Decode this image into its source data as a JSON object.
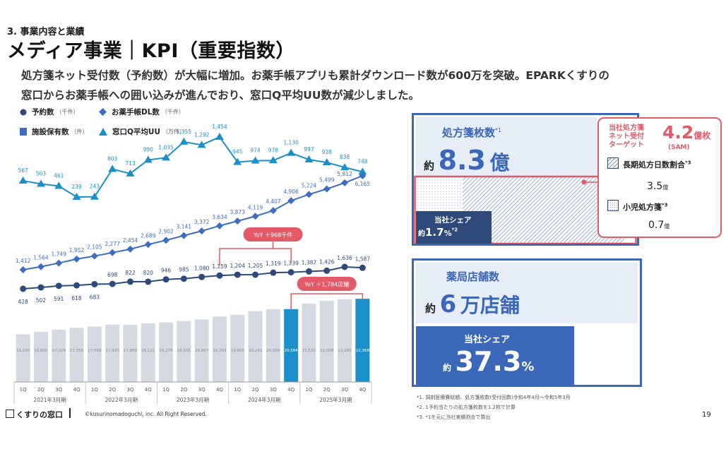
{
  "header": {
    "section": "3. 事業内容と業績",
    "title": "メディア事業｜KPI（重要指数）",
    "lead_line1": "処方箋ネット受付数（予約数）が大幅に増加。お薬手帳アプリも累計ダウンロード数が600万を突破。EPARKくすりの",
    "lead_line2": "窓口からお薬手帳への囲い込みが進んでおり、窓口Q平均UU数が減少しました。"
  },
  "legend": [
    {
      "label": "予約数",
      "unit": "（千件）",
      "marker": "circle",
      "color": "#2e4a7a"
    },
    {
      "label": "お薬手帳DL数",
      "unit": "（千件）",
      "marker": "diamond",
      "color": "#3d6cc0"
    },
    {
      "label": "施設保有数",
      "unit": "（件）",
      "marker": "square",
      "color": "#3d6cc0"
    },
    {
      "label": "窓口Q平均UU",
      "unit": "（万件）",
      "marker": "triangle",
      "color": "#1b8fc9"
    }
  ],
  "chart_data": {
    "type": "bar",
    "categories": [
      "1Q",
      "2Q",
      "3Q",
      "4Q",
      "1Q",
      "2Q",
      "3Q",
      "4Q",
      "1Q",
      "2Q",
      "3Q",
      "4Q",
      "1Q",
      "2Q",
      "3Q",
      "4Q",
      "1Q",
      "2Q",
      "3Q",
      "4Q"
    ],
    "fiscal_years": [
      "2021年3月期",
      "2022年3月期",
      "2023年3月期",
      "2024年3月期",
      "2025年3月期"
    ],
    "series": [
      {
        "name": "施設保有数",
        "unit": "（件）",
        "type": "bar",
        "values": [
          16230,
          16650,
          17029,
          17358,
          17569,
          17920,
          17869,
          18121,
          18278,
          18535,
          18807,
          19293,
          19605,
          20243,
          20584,
          20584,
          21532,
          22008,
          22285,
          22368
        ],
        "value_labels": [
          "16,230",
          "16,650",
          "17,029",
          "17,358",
          "17,569",
          "17,920",
          "17,869",
          "18,121",
          "18,278",
          "18,535",
          "18,807",
          "19,293",
          "19,605",
          "20,243",
          "20,584",
          "20,584",
          "21,532",
          "22,008",
          "22,285",
          "22,368"
        ],
        "highlight_indices": [
          15,
          19
        ]
      },
      {
        "name": "窓口Q平均UU",
        "unit": "（万件）",
        "type": "line",
        "marker": "triangle",
        "values": [
          567,
          503,
          461,
          239,
          243,
          803,
          713,
          990,
          1035,
          1355,
          1292,
          1454,
          945,
          974,
          978,
          1130,
          997,
          938,
          838,
          748
        ],
        "value_labels": [
          "567",
          "503",
          "461",
          "239",
          "243",
          "803",
          "713",
          "990",
          "1,035",
          "1,355",
          "1,292",
          "1,454",
          "945",
          "974",
          "978",
          "1,130",
          "997",
          "938",
          "838",
          "748"
        ]
      },
      {
        "name": "お薬手帳DL数",
        "unit": "（千件）",
        "type": "line",
        "marker": "diamond",
        "values": [
          1412,
          1564,
          1749,
          1952,
          2105,
          2277,
          2454,
          2689,
          2902,
          3141,
          3372,
          3634,
          3873,
          4119,
          4407,
          4906,
          5224,
          5499,
          5812,
          6165
        ],
        "value_labels": [
          "1,412",
          "1,564",
          "1,749",
          "1,952",
          "2,105",
          "2,277",
          "2,454",
          "2,689",
          "2,902",
          "3,141",
          "3,372",
          "3,634",
          "3,873",
          "4,119",
          "4,407",
          "4,906",
          "5,224",
          "5,499",
          "5,812",
          "6,165"
        ]
      },
      {
        "name": "予約数",
        "unit": "（千件）",
        "type": "line",
        "marker": "circle",
        "values": [
          428,
          502,
          591,
          618,
          683,
          698,
          822,
          820,
          946,
          985,
          1080,
          1159,
          1204,
          1205,
          1319,
          1339,
          1387,
          1426,
          1636,
          1587
        ],
        "value_labels": [
          "428",
          "502",
          "591",
          "618",
          "683",
          "698",
          "822",
          "820",
          "946",
          "985",
          "1,080",
          "1,159",
          "1,204",
          "1,205",
          "1,319",
          "1,339",
          "1,387",
          "1,426",
          "1,636",
          "1,587"
        ]
      }
    ],
    "annotations": [
      {
        "text": "YoY ＋968千件",
        "series": "予約数",
        "from_index": 11,
        "to_index": 15
      },
      {
        "text": "YoY ＋1,784店舗",
        "series": "施設保有数",
        "from_index": 15,
        "to_index": 19
      }
    ]
  },
  "kpi_prescriptions": {
    "title": "処方箋枚数",
    "title_sup": "*1",
    "value_prefix": "約",
    "value": "8.3",
    "value_unit": "億",
    "share_label": "当社シェア",
    "share_prefix": "約",
    "share_value": "1.7",
    "share_unit": "%",
    "share_sup": "*2",
    "share_fraction": 0.017,
    "sam_fraction": 0.5,
    "target": {
      "title_line1": "当社処方箋",
      "title_line2": "ネット受付",
      "title_line3": "ターゲット",
      "value": "4.2",
      "value_unit": "億枚",
      "value_note": "(SAM)",
      "long_label": "長期処方日数割合",
      "long_sup": "*3",
      "long_value": "3.5",
      "long_unit": "億",
      "child_label": "小児処方箋",
      "child_sup": "*3",
      "child_value": "0.7",
      "child_unit": "億"
    }
  },
  "kpi_pharmacies": {
    "title": "薬局店舗数",
    "value_prefix": "約",
    "value": "6",
    "value_unit": "万店舗",
    "share_label": "当社シェア",
    "share_prefix": "約",
    "share_value": "37.3",
    "share_unit": "%",
    "share_fraction": 0.373
  },
  "notes": [
    "*1. 調剤医療費総額、処方箋枚数(受付回数)令和4年4月～令和5年3月",
    "*2. 1予約当たりの処方箋枚数を1.2枚で計算",
    "*3. *1を元に当社実績割合で算出"
  ],
  "footer": {
    "logo": "くすりの窓口",
    "copyright": "©kusurinomadoguchi, inc. All Right Reserved.",
    "page": "19"
  },
  "colors": {
    "navy": "#2e4a7a",
    "blue": "#3d6cc0",
    "cyan": "#1b8fc9",
    "bar_gray": "#d5dae2",
    "highlight_bar": "#1b8fc9",
    "accent_red": "#e25a68",
    "box_blue": "#3a67b8"
  }
}
